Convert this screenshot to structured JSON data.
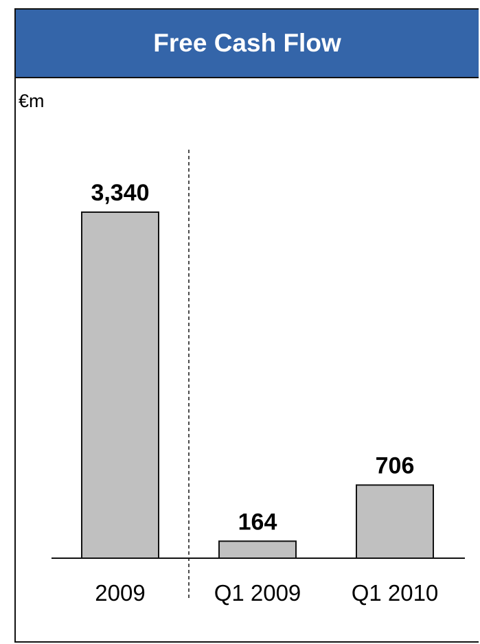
{
  "panel": {
    "title": "Free Cash Flow",
    "unit": "€m",
    "header_color": "#3465a9"
  },
  "chart_data": {
    "type": "bar",
    "title": "Free Cash Flow",
    "ylabel": "€m",
    "xlabel": "",
    "categories": [
      "2009",
      "Q1 2009",
      "Q1 2010"
    ],
    "values": [
      3340,
      164,
      706
    ],
    "value_labels": [
      "3,340",
      "164",
      "706"
    ],
    "ylim": [
      0,
      3340
    ],
    "grid": false,
    "legend": "none",
    "bar_color": "#c0c0c0",
    "separator_after_category": 0
  }
}
